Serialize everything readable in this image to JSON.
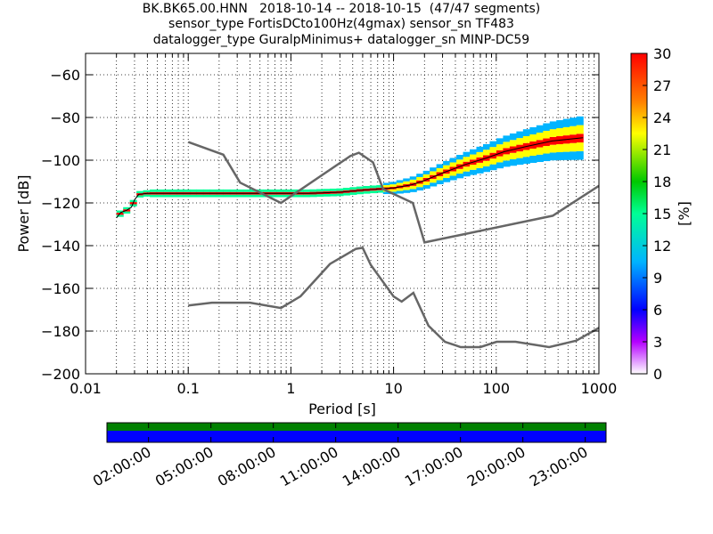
{
  "title_lines": [
    "BK.BK65.00.HNN   2018-10-14 -- 2018-10-15  (47/47 segments)",
    "sensor_type FortisDCto100Hz(4gmax) sensor_sn TF483",
    "datalogger_type GuralpMinimus+ datalogger_sn MINP-DC59"
  ],
  "chart_data": {
    "type": "heatmap",
    "xlabel": "Period [s]",
    "ylabel": "Power [dB]",
    "xscale": "log",
    "xlim": [
      0.01,
      1000
    ],
    "ylim": [
      -200,
      -50
    ],
    "xticks": [
      {
        "v": 0.01,
        "label": "0.01"
      },
      {
        "v": 0.1,
        "label": "0.1"
      },
      {
        "v": 1,
        "label": "1"
      },
      {
        "v": 10,
        "label": "10"
      },
      {
        "v": 100,
        "label": "100"
      },
      {
        "v": 1000,
        "label": "1000"
      }
    ],
    "yticks": [
      {
        "v": -60,
        "label": "−60"
      },
      {
        "v": -80,
        "label": "−80"
      },
      {
        "v": -100,
        "label": "−100"
      },
      {
        "v": -120,
        "label": "−120"
      },
      {
        "v": -140,
        "label": "−140"
      },
      {
        "v": -160,
        "label": "−160"
      },
      {
        "v": -180,
        "label": "−180"
      },
      {
        "v": -200,
        "label": "−200"
      }
    ],
    "grid": true,
    "noise_model_curves": [
      {
        "x": [
          0.1,
          0.22,
          0.32,
          0.8,
          3.8,
          4.6,
          6.3,
          7.9,
          15.4,
          20,
          354.8,
          1000
        ],
        "y": [
          -91.5,
          -97.4,
          -110.5,
          -120,
          -98,
          -96.5,
          -101,
          -113.5,
          -120,
          -138.5,
          -126,
          -112
        ]
      },
      {
        "x": [
          0.1,
          0.17,
          0.4,
          0.8,
          1.24,
          2.4,
          4.3,
          5,
          6,
          10,
          12,
          15.6,
          21.9,
          31.6,
          45,
          70,
          101,
          154,
          328,
          600,
          1000
        ],
        "y": [
          -168,
          -166.7,
          -166.7,
          -169.2,
          -163.7,
          -148.6,
          -141.5,
          -141,
          -149,
          -163.8,
          -166.2,
          -162.1,
          -177.5,
          -185,
          -187.5,
          -187.5,
          -185,
          -185,
          -187.5,
          -184.5,
          -178.5
        ]
      }
    ],
    "mean_curve": {
      "x": [
        0.02,
        0.022,
        0.025,
        0.028,
        0.03,
        0.033,
        0.04,
        0.06,
        0.1,
        0.2,
        0.4,
        0.8,
        1.5,
        3,
        5,
        7,
        10,
        15,
        20,
        30,
        50,
        80,
        120,
        200,
        350,
        700
      ],
      "y": [
        -127,
        -124.5,
        -123.5,
        -122,
        -118.5,
        -116,
        -115.5,
        -115.5,
        -115.5,
        -115.5,
        -115.5,
        -115.5,
        -115.5,
        -115,
        -114,
        -113.5,
        -113,
        -111.5,
        -109.5,
        -106,
        -102,
        -99,
        -96,
        -93.5,
        -91,
        -89.5
      ]
    },
    "colorbar": {
      "label": "[%]",
      "min": 0,
      "max": 30,
      "ticks": [
        0,
        3,
        6,
        9,
        12,
        15,
        18,
        21,
        24,
        27,
        30
      ]
    },
    "timeline": {
      "labels": [
        "02:00:00",
        "05:00:00",
        "08:00:00",
        "11:00:00",
        "14:00:00",
        "17:00:00",
        "20:00:00",
        "23:00:00"
      ],
      "band_colors": [
        "#008000",
        "#0000ff"
      ]
    }
  }
}
